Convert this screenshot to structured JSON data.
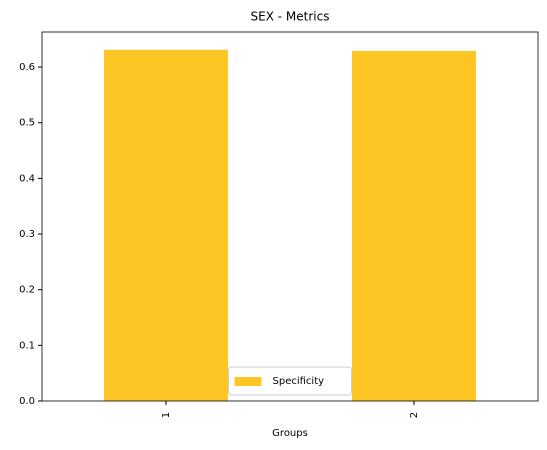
{
  "chart_data": {
    "type": "bar",
    "title": "SEX - Metrics",
    "xlabel": "Groups",
    "categories": [
      "1",
      "2"
    ],
    "series": [
      {
        "name": "Specificity",
        "color": "#fdc625",
        "values": [
          0.631,
          0.629
        ]
      }
    ],
    "ylim": [
      0,
      0.663
    ],
    "yticks": [
      {
        "value": 0,
        "label": "0.0"
      },
      {
        "value": 0.1,
        "label": "0.1"
      },
      {
        "value": 0.2,
        "label": "0.2"
      },
      {
        "value": 0.3,
        "label": "0.3"
      },
      {
        "value": 0.4,
        "label": "0.4"
      },
      {
        "value": 0.5,
        "label": "0.5"
      },
      {
        "value": 0.6,
        "label": "0.6"
      }
    ],
    "legend": "lower center"
  }
}
